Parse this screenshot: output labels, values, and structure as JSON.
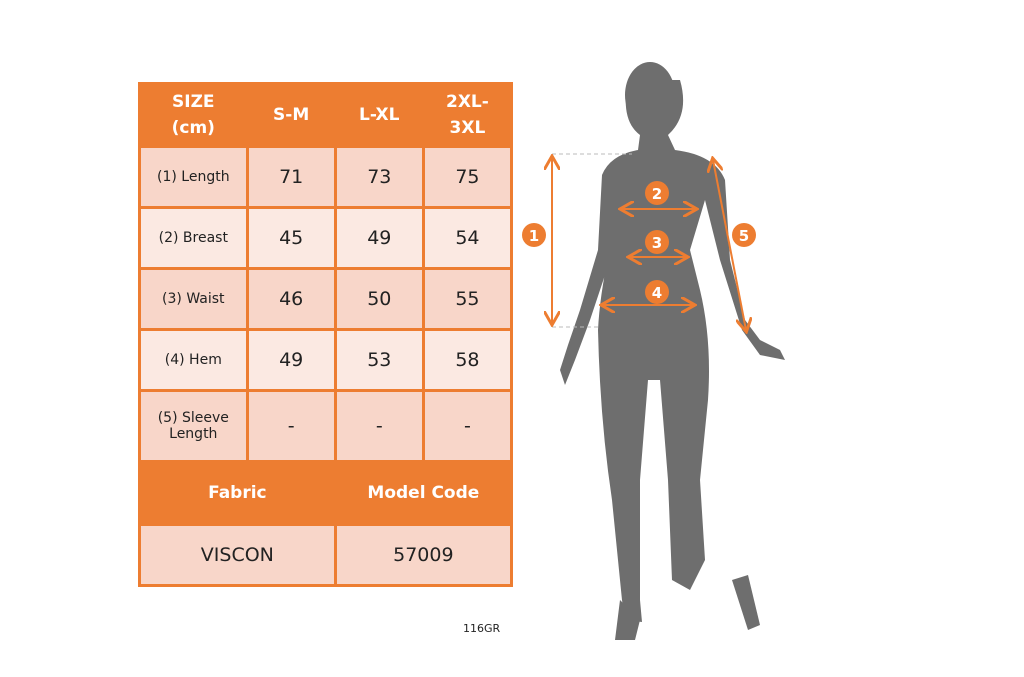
{
  "table": {
    "headers": [
      "SIZE\n(cm)",
      "S-M",
      "L-XL",
      "2XL-\n3XL"
    ],
    "rows": [
      {
        "label": "(1) Length",
        "values": [
          "71",
          "73",
          "75"
        ]
      },
      {
        "label": "(2) Breast",
        "values": [
          "45",
          "49",
          "54"
        ]
      },
      {
        "label": "(3) Waist",
        "values": [
          "46",
          "50",
          "55"
        ]
      },
      {
        "label": "(4) Hem",
        "values": [
          "49",
          "53",
          "58"
        ]
      },
      {
        "label": "(5) Sleeve\nLength",
        "values": [
          "-",
          "-",
          "-"
        ]
      }
    ],
    "footer_headers": [
      "Fabric",
      "Model Code"
    ],
    "footer_values": [
      "VISCON",
      "57009"
    ]
  },
  "code": "116GR",
  "figure": {
    "markers": [
      "1",
      "2",
      "3",
      "4",
      "5"
    ]
  },
  "colors": {
    "accent": "#ED7D31",
    "silhouette": "#6E6E6E"
  }
}
